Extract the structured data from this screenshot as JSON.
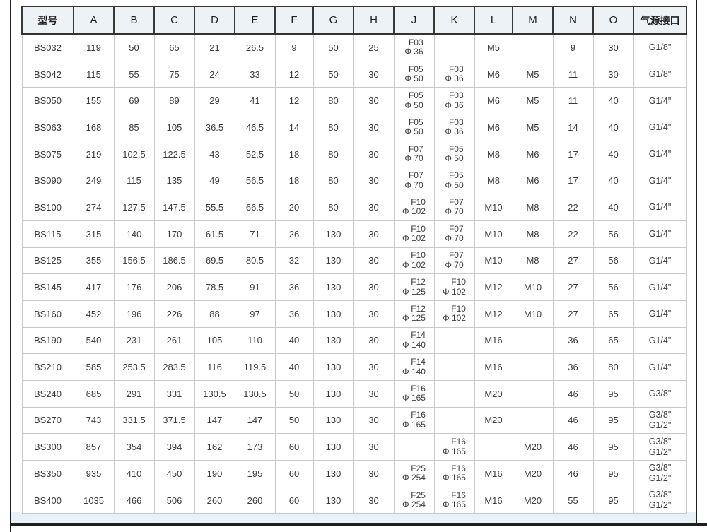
{
  "page": {
    "colors": {
      "header_bg": "#edf2f7",
      "dark_border": "#333333",
      "grid_line": "#c7cacc",
      "text": "#3c3c3c",
      "bottom_strip": "#e8f1f8"
    }
  },
  "table": {
    "columns": [
      "型号",
      "A",
      "B",
      "C",
      "D",
      "E",
      "F",
      "G",
      "H",
      "J",
      "K",
      "L",
      "M",
      "N",
      "O",
      "气源接口"
    ],
    "rows": [
      [
        "BS032",
        "119",
        "50",
        "65",
        "21",
        "26.5",
        "9",
        "50",
        "25",
        [
          "F03",
          "Φ 36"
        ],
        "",
        "M5",
        "",
        "9",
        "30",
        "G1/8\""
      ],
      [
        "BS042",
        "115",
        "55",
        "75",
        "24",
        "33",
        "12",
        "50",
        "30",
        [
          "F05",
          "Φ 50"
        ],
        [
          "F03",
          "Φ 36"
        ],
        "M6",
        "M5",
        "11",
        "30",
        "G1/8\""
      ],
      [
        "BS050",
        "155",
        "69",
        "89",
        "29",
        "41",
        "12",
        "80",
        "30",
        [
          "F05",
          "Φ 50"
        ],
        [
          "F03",
          "Φ 36"
        ],
        "M6",
        "M5",
        "11",
        "40",
        "G1/4\""
      ],
      [
        "BS063",
        "168",
        "85",
        "105",
        "36.5",
        "46.5",
        "14",
        "80",
        "30",
        [
          "F05",
          "Φ 50"
        ],
        [
          "F03",
          "Φ 36"
        ],
        "M6",
        "M5",
        "14",
        "40",
        "G1/4\""
      ],
      [
        "BS075",
        "219",
        "102.5",
        "122.5",
        "43",
        "52.5",
        "18",
        "80",
        "30",
        [
          "F07",
          "Φ 70"
        ],
        [
          "F05",
          "Φ 50"
        ],
        "M8",
        "M6",
        "17",
        "40",
        "G1/4\""
      ],
      [
        "BS090",
        "249",
        "115",
        "135",
        "49",
        "56.5",
        "18",
        "80",
        "30",
        [
          "F07",
          "Φ 70"
        ],
        [
          "F05",
          "Φ 50"
        ],
        "M8",
        "M6",
        "17",
        "40",
        "G1/4\""
      ],
      [
        "BS100",
        "274",
        "127.5",
        "147.5",
        "55.5",
        "66.5",
        "20",
        "80",
        "30",
        [
          "F10",
          "Φ 102"
        ],
        [
          "F07",
          "Φ 70"
        ],
        "M10",
        "M8",
        "22",
        "40",
        "G1/4\""
      ],
      [
        "BS115",
        "315",
        "140",
        "170",
        "61.5",
        "71",
        "26",
        "130",
        "30",
        [
          "F10",
          "Φ 102"
        ],
        [
          "F07",
          "Φ 70"
        ],
        "M10",
        "M8",
        "22",
        "56",
        "G1/4\""
      ],
      [
        "BS125",
        "355",
        "156.5",
        "186.5",
        "69.5",
        "80.5",
        "32",
        "130",
        "30",
        [
          "F10",
          "Φ 102"
        ],
        [
          "F07",
          "Φ 70"
        ],
        "M10",
        "M8",
        "27",
        "56",
        "G1/4\""
      ],
      [
        "BS145",
        "417",
        "176",
        "206",
        "78.5",
        "91",
        "36",
        "130",
        "30",
        [
          "F12",
          "Φ 125"
        ],
        [
          "F10",
          "Φ 102"
        ],
        "M12",
        "M10",
        "27",
        "56",
        "G1/4\""
      ],
      [
        "BS160",
        "452",
        "196",
        "226",
        "88",
        "97",
        "36",
        "130",
        "30",
        [
          "F12",
          "Φ 125"
        ],
        [
          "F10",
          "Φ 102"
        ],
        "M12",
        "M10",
        "27",
        "65",
        "G1/4\""
      ],
      [
        "BS190",
        "540",
        "231",
        "261",
        "105",
        "110",
        "40",
        "130",
        "30",
        [
          "F14",
          "Φ 140"
        ],
        "",
        "M16",
        "",
        "36",
        "65",
        "G1/4\""
      ],
      [
        "BS210",
        "585",
        "253.5",
        "283.5",
        "116",
        "119.5",
        "40",
        "130",
        "30",
        [
          "F14",
          "Φ 140"
        ],
        "",
        "M16",
        "",
        "36",
        "80",
        "G1/4\""
      ],
      [
        "BS240",
        "685",
        "291",
        "331",
        "130.5",
        "130.5",
        "50",
        "130",
        "30",
        [
          "F16",
          "Φ 165"
        ],
        "",
        "M20",
        "",
        "46",
        "95",
        "G3/8\""
      ],
      [
        "BS270",
        "743",
        "331.5",
        "371.5",
        "147",
        "147",
        "50",
        "130",
        "30",
        [
          "F16",
          "Φ 165"
        ],
        "",
        "M20",
        "",
        "46",
        "95",
        [
          "G3/8\"",
          "G1/2\""
        ]
      ],
      [
        "BS300",
        "857",
        "354",
        "394",
        "162",
        "173",
        "60",
        "130",
        "30",
        "",
        [
          "F16",
          "Φ 165"
        ],
        "",
        "M20",
        "46",
        "95",
        [
          "G3/8\"",
          "G1/2\""
        ]
      ],
      [
        "BS350",
        "935",
        "410",
        "450",
        "190",
        "195",
        "60",
        "130",
        "30",
        [
          "F25",
          "Φ 254"
        ],
        [
          "F16",
          "Φ 165"
        ],
        "M16",
        "M20",
        "46",
        "95",
        [
          "G3/8\"",
          "G1/2\""
        ]
      ],
      [
        "BS400",
        "1035",
        "466",
        "506",
        "260",
        "260",
        "60",
        "130",
        "30",
        [
          "F25",
          "Φ 254"
        ],
        [
          "F16",
          "Φ 165"
        ],
        "M16",
        "M20",
        "55",
        "95",
        [
          "G3/8\"",
          "G1/2\""
        ]
      ]
    ]
  }
}
